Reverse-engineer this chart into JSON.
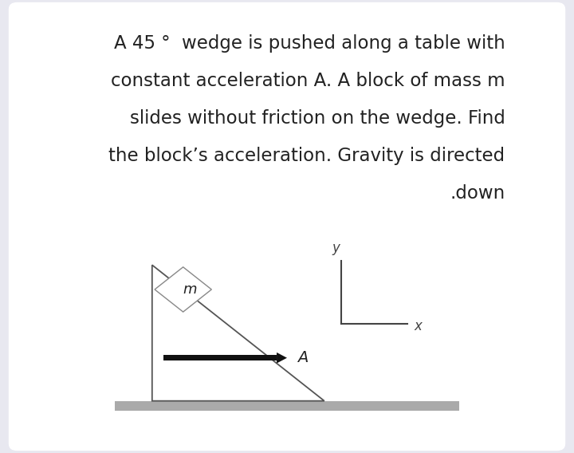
{
  "bg_color": "#e8e8f0",
  "card_color": "#ffffff",
  "text_lines": [
    "A 45 °  wedge is pushed along a table with",
    "constant acceleration A. A block of mass m",
    "slides without friction on the wedge. Find",
    "the block’s acceleration. Gravity is directed",
    ".down"
  ],
  "block_label": "m",
  "arrow_label": "A",
  "axis_label_x": "x",
  "axis_label_y": "y",
  "table_color": "#aaaaaa",
  "wedge_color": "#ffffff",
  "wedge_edge_color": "#555555",
  "block_color": "#ffffff",
  "block_edge_color": "#888888",
  "arrow_color": "#111111",
  "text_color": "#222222",
  "axis_color": "#444444",
  "font_size_text": 16.5
}
